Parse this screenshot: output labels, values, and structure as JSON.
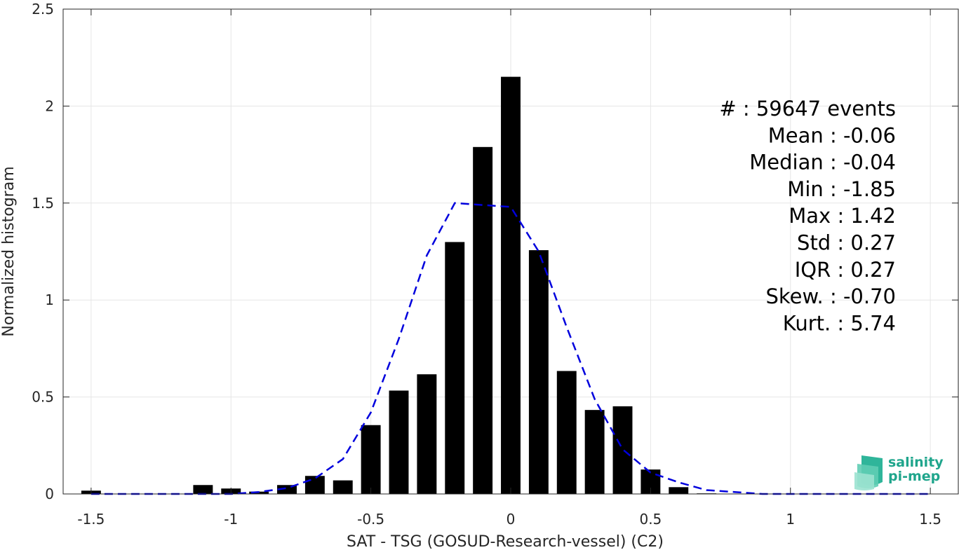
{
  "chart_data": {
    "type": "bar",
    "xlabel": "SAT - TSG (GOSUD-Research-vessel) (C2)",
    "ylabel": "Normalized histogram",
    "xlim": [
      -1.6,
      1.6
    ],
    "ylim": [
      0,
      2.5
    ],
    "xticks": [
      -1.5,
      -1,
      -0.5,
      0,
      0.5,
      1,
      1.5
    ],
    "xtick_labels": [
      "-1.5",
      "-1",
      "-0.5",
      "0",
      "0.5",
      "1",
      "1.5"
    ],
    "yticks": [
      0,
      0.5,
      1,
      1.5,
      2,
      2.5
    ],
    "ytick_labels": [
      "0",
      "0.5",
      "1",
      "1.5",
      "2",
      "2.5"
    ],
    "grid": true,
    "bin_width": 0.1,
    "bars": {
      "x": [
        -1.5,
        -1.4,
        -1.3,
        -1.2,
        -1.1,
        -1.0,
        -0.9,
        -0.8,
        -0.7,
        -0.6,
        -0.5,
        -0.4,
        -0.3,
        -0.2,
        -0.1,
        0.0,
        0.1,
        0.2,
        0.3,
        0.4,
        0.5,
        0.6,
        0.7,
        0.8
      ],
      "values": [
        0.017,
        0.0,
        0.0,
        0.0,
        0.046,
        0.028,
        0.012,
        0.046,
        0.093,
        0.07,
        0.355,
        0.533,
        0.617,
        1.299,
        1.789,
        2.151,
        1.257,
        0.634,
        0.433,
        0.452,
        0.126,
        0.035,
        0.003,
        0.0
      ],
      "color": "#000000"
    },
    "fit": {
      "style": "dashed",
      "color": "#0000dd",
      "x": [
        -1.5,
        -1.4,
        -1.3,
        -1.2,
        -1.1,
        -1.0,
        -0.9,
        -0.8,
        -0.7,
        -0.6,
        -0.5,
        -0.4,
        -0.3,
        -0.2,
        -0.1,
        0.0,
        0.1,
        0.2,
        0.3,
        0.4,
        0.5,
        0.6,
        0.7,
        0.8,
        0.9,
        1.0,
        1.1,
        1.2,
        1.3,
        1.4,
        1.5
      ],
      "values": [
        0.0,
        0.0,
        0.0,
        0.0,
        0.0,
        0.0,
        0.01,
        0.03,
        0.08,
        0.18,
        0.42,
        0.8,
        1.23,
        1.5,
        1.49,
        1.48,
        1.25,
        0.86,
        0.49,
        0.23,
        0.11,
        0.06,
        0.02,
        0.01,
        0.0,
        0.0,
        0.0,
        0.0,
        0.0,
        0.0,
        0.0
      ]
    },
    "stats": [
      "#  : 59647 events",
      "Mean : -0.06",
      "Median : -0.04",
      "Min : -1.85",
      "Max : 1.42",
      "Std : 0.27",
      "IQR : 0.27",
      "Skew. : -0.70",
      "Kurt. : 5.74"
    ]
  },
  "logo": {
    "line1": "salinity",
    "line2": "pi-mep"
  }
}
